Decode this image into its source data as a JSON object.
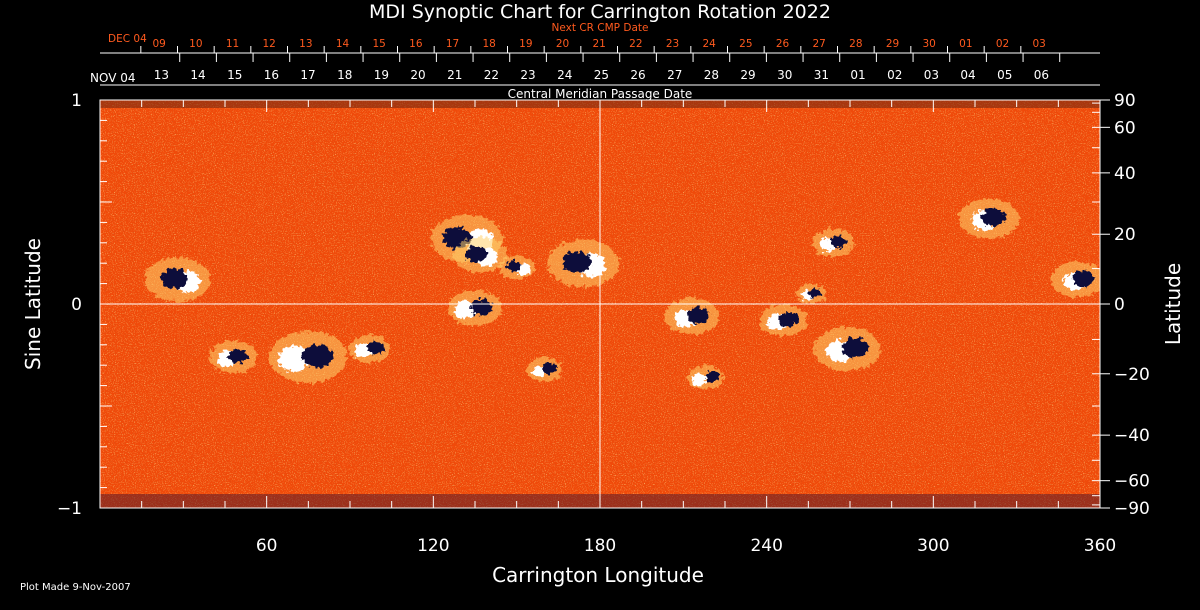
{
  "colors": {
    "background": "#000000",
    "foreground": "#ffffff",
    "next_cr_color": "#ff5a1e",
    "field_base": "#f04a0a",
    "positive_polarity": "#ffffff",
    "negative_polarity": "#0b0b3a"
  },
  "chart_data": {
    "type": "heatmap",
    "title": "MDI Synoptic Chart for Carrington Rotation 2022",
    "xlabel": "Carrington Longitude",
    "ylabel_left": "Sine Latitude",
    "ylabel_right": "Latitude",
    "xlim": [
      0,
      360
    ],
    "ylim_sine": [
      -1,
      1
    ],
    "x_ticks": [
      60,
      120,
      180,
      240,
      300,
      360
    ],
    "y_ticks_left": [
      {
        "value": 1,
        "label": "1"
      },
      {
        "value": 0,
        "label": "0"
      },
      {
        "value": -1,
        "label": "−1"
      }
    ],
    "y_ticks_right": [
      {
        "deg": 90,
        "label": "90"
      },
      {
        "deg": 60,
        "label": "60"
      },
      {
        "deg": 40,
        "label": "40"
      },
      {
        "deg": 20,
        "label": "20"
      },
      {
        "deg": 0,
        "label": "0"
      },
      {
        "deg": -20,
        "label": "−20"
      },
      {
        "deg": -40,
        "label": "−40"
      },
      {
        "deg": -60,
        "label": "−60"
      },
      {
        "deg": -90,
        "label": "−90"
      }
    ],
    "grid_lines": {
      "longitude": 180,
      "sine_latitude": 0
    },
    "top_axis_cmp_date": {
      "title": "Central Meridian Passage Date",
      "first_label": "NOV 04",
      "labels": [
        "06",
        "05",
        "04",
        "03",
        "02",
        "01",
        "31",
        "30",
        "29",
        "28",
        "27",
        "26",
        "25",
        "24",
        "23",
        "22",
        "21",
        "20",
        "19",
        "18",
        "17",
        "16",
        "15",
        "14",
        "13"
      ],
      "label_longitudes": [
        345.5,
        332.3,
        319.1,
        305.9,
        292.7,
        279.5,
        266.3,
        253.1,
        239.9,
        226.7,
        213.5,
        200.3,
        187.1,
        173.9,
        160.7,
        147.5,
        134.3,
        121.1,
        107.9,
        94.7,
        81.5,
        68.3,
        55.1,
        41.9,
        28.7
      ]
    },
    "top_axis_next_cr": {
      "title": "Next CR CMP Date",
      "first_label": "DEC 04",
      "labels": [
        "03",
        "02",
        "01",
        "30",
        "29",
        "28",
        "27",
        "26",
        "25",
        "24",
        "23",
        "22",
        "21",
        "20",
        "19",
        "18",
        "17",
        "16",
        "15",
        "14",
        "13",
        "12",
        "11",
        "10",
        "09"
      ],
      "label_longitudes": [
        331.5,
        318.3,
        305.1,
        291.9,
        278.7,
        265.5,
        252.3,
        239.1,
        225.9,
        212.7,
        199.5,
        186.3,
        173.1,
        159.9,
        146.7,
        133.5,
        120.3,
        107.1,
        93.9,
        80.7,
        67.5,
        54.3,
        41.1,
        27.9,
        14.7
      ]
    },
    "active_regions": [
      {
        "lon": 28,
        "sinlat": 0.12,
        "pos_dx": 6,
        "neg_dx": -2,
        "size": 1.1
      },
      {
        "lon": 48,
        "sinlat": -0.26,
        "pos_dx": -4,
        "neg_dx": 3,
        "size": 0.8
      },
      {
        "lon": 75,
        "sinlat": -0.26,
        "pos_dx": -9,
        "neg_dx": 6,
        "size": 1.3
      },
      {
        "lon": 97,
        "sinlat": -0.22,
        "pos_dx": -4,
        "neg_dx": 4,
        "size": 0.7
      },
      {
        "lon": 132,
        "sinlat": 0.32,
        "pos_dx": 8,
        "neg_dx": -6,
        "size": 1.2
      },
      {
        "lon": 137,
        "sinlat": 0.24,
        "pos_dx": 4,
        "neg_dx": -3,
        "size": 0.9
      },
      {
        "lon": 135,
        "sinlat": -0.02,
        "pos_dx": -6,
        "neg_dx": 4,
        "size": 0.9
      },
      {
        "lon": 150,
        "sinlat": 0.18,
        "pos_dx": 4,
        "neg_dx": -2,
        "size": 0.6
      },
      {
        "lon": 160,
        "sinlat": -0.32,
        "pos_dx": -3,
        "neg_dx": 3,
        "size": 0.6
      },
      {
        "lon": 174,
        "sinlat": 0.2,
        "pos_dx": 5,
        "neg_dx": -4,
        "size": 1.2
      },
      {
        "lon": 213,
        "sinlat": -0.06,
        "pos_dx": -4,
        "neg_dx": 4,
        "size": 0.9
      },
      {
        "lon": 218,
        "sinlat": -0.36,
        "pos_dx": -4,
        "neg_dx": 4,
        "size": 0.6
      },
      {
        "lon": 246,
        "sinlat": -0.08,
        "pos_dx": -4,
        "neg_dx": 3,
        "size": 0.8
      },
      {
        "lon": 269,
        "sinlat": -0.22,
        "pos_dx": -5,
        "neg_dx": 5,
        "size": 1.1
      },
      {
        "lon": 256,
        "sinlat": 0.05,
        "pos_dx": -2,
        "neg_dx": 2,
        "size": 0.5
      },
      {
        "lon": 264,
        "sinlat": 0.3,
        "pos_dx": -3,
        "neg_dx": 3,
        "size": 0.7
      },
      {
        "lon": 320,
        "sinlat": 0.42,
        "pos_dx": -3,
        "neg_dx": 3,
        "size": 1.0
      },
      {
        "lon": 352,
        "sinlat": 0.12,
        "pos_dx": -2,
        "neg_dx": 3,
        "size": 0.9
      }
    ]
  },
  "footer": {
    "plot_made": "Plot Made  9-Nov-2007"
  }
}
